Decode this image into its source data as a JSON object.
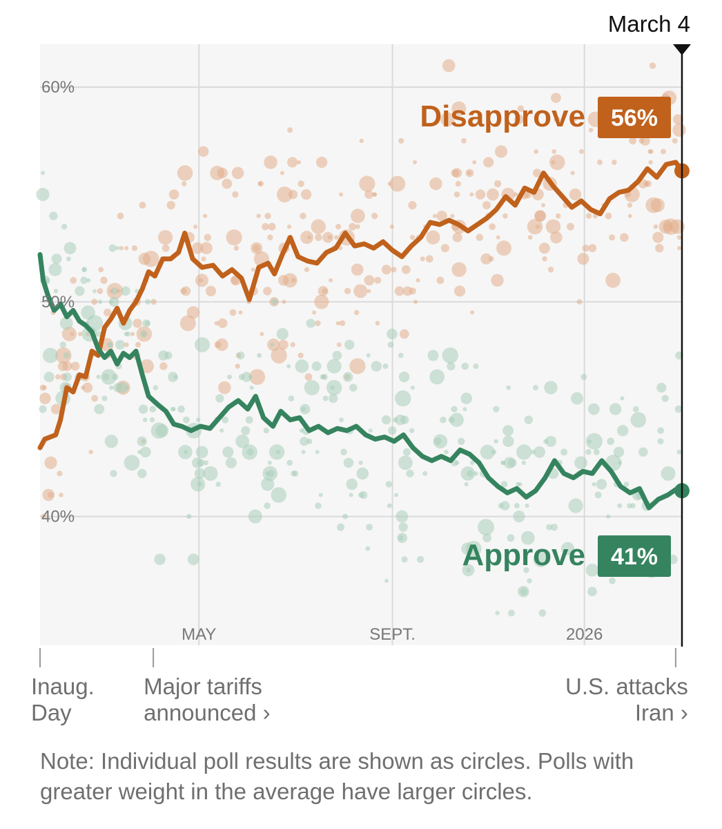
{
  "chart_data": {
    "type": "line",
    "date_marker": "March 4",
    "y_ticks": [
      {
        "value": 60,
        "label": "60%"
      },
      {
        "value": 50,
        "label": "50%"
      },
      {
        "value": 40,
        "label": "40%"
      }
    ],
    "ylim": [
      34,
      62
    ],
    "x_range": [
      "2025-01-20",
      "2026-03-04"
    ],
    "x_ticks": [
      {
        "date": "2025-05-01",
        "label": "MAY"
      },
      {
        "date": "2025-09-01",
        "label": "SEPT."
      },
      {
        "date": "2026-01-01",
        "label": "2026"
      }
    ],
    "events": [
      {
        "date": "2025-01-20",
        "line1": "Inaug.",
        "line2": "Day",
        "align": "start"
      },
      {
        "date": "2025-04-02",
        "line1": "Major tariffs",
        "line2": "announced ›",
        "align": "start"
      },
      {
        "date": "2026-02-28",
        "line1": "U.S. attacks",
        "line2": "Iran ›",
        "align": "end"
      }
    ],
    "series": [
      {
        "name": "Disapprove",
        "current_label": "56%",
        "color": "#c0611c",
        "dot_color": "#e2ae8d",
        "points": [
          [
            "2025-01-20",
            43.2
          ],
          [
            "2025-01-23",
            43.6
          ],
          [
            "2025-01-30",
            43.8
          ],
          [
            "2025-02-02",
            44.5
          ],
          [
            "2025-02-06",
            46.0
          ],
          [
            "2025-02-10",
            45.8
          ],
          [
            "2025-02-14",
            46.6
          ],
          [
            "2025-02-18",
            46.5
          ],
          [
            "2025-02-22",
            47.7
          ],
          [
            "2025-02-26",
            47.5
          ],
          [
            "2025-03-02",
            48.8
          ],
          [
            "2025-03-06",
            49.2
          ],
          [
            "2025-03-10",
            49.7
          ],
          [
            "2025-03-14",
            49.0
          ],
          [
            "2025-03-18",
            49.6
          ],
          [
            "2025-03-22",
            50.0
          ],
          [
            "2025-03-26",
            50.6
          ],
          [
            "2025-03-30",
            51.4
          ],
          [
            "2025-04-03",
            51.2
          ],
          [
            "2025-04-08",
            52.0
          ],
          [
            "2025-04-13",
            52.0
          ],
          [
            "2025-04-18",
            52.3
          ],
          [
            "2025-04-22",
            53.2
          ],
          [
            "2025-04-27",
            52.0
          ],
          [
            "2025-05-03",
            51.6
          ],
          [
            "2025-05-10",
            51.7
          ],
          [
            "2025-05-16",
            51.2
          ],
          [
            "2025-05-22",
            51.5
          ],
          [
            "2025-05-28",
            51.1
          ],
          [
            "2025-06-02",
            50.1
          ],
          [
            "2025-06-08",
            51.6
          ],
          [
            "2025-06-14",
            51.8
          ],
          [
            "2025-06-18",
            51.3
          ],
          [
            "2025-06-23",
            52.2
          ],
          [
            "2025-06-28",
            53.0
          ],
          [
            "2025-07-03",
            52.1
          ],
          [
            "2025-07-09",
            51.9
          ],
          [
            "2025-07-15",
            51.8
          ],
          [
            "2025-07-21",
            52.3
          ],
          [
            "2025-07-27",
            52.5
          ],
          [
            "2025-08-02",
            53.2
          ],
          [
            "2025-08-08",
            52.6
          ],
          [
            "2025-08-14",
            52.7
          ],
          [
            "2025-08-20",
            52.5
          ],
          [
            "2025-08-26",
            52.8
          ],
          [
            "2025-09-01",
            52.4
          ],
          [
            "2025-09-07",
            52.1
          ],
          [
            "2025-09-13",
            52.6
          ],
          [
            "2025-09-19",
            53.0
          ],
          [
            "2025-09-25",
            53.7
          ],
          [
            "2025-10-01",
            53.6
          ],
          [
            "2025-10-07",
            53.8
          ],
          [
            "2025-10-13",
            53.6
          ],
          [
            "2025-10-19",
            53.3
          ],
          [
            "2025-10-25",
            53.6
          ],
          [
            "2025-10-31",
            53.9
          ],
          [
            "2025-11-06",
            54.3
          ],
          [
            "2025-11-12",
            54.9
          ],
          [
            "2025-11-18",
            54.5
          ],
          [
            "2025-11-24",
            55.3
          ],
          [
            "2025-11-30",
            55.1
          ],
          [
            "2025-12-06",
            56.0
          ],
          [
            "2025-12-12",
            55.4
          ],
          [
            "2025-12-18",
            54.9
          ],
          [
            "2025-12-24",
            54.4
          ],
          [
            "2025-12-30",
            54.7
          ],
          [
            "2026-01-05",
            54.3
          ],
          [
            "2026-01-11",
            54.1
          ],
          [
            "2026-01-17",
            54.8
          ],
          [
            "2026-01-23",
            55.1
          ],
          [
            "2026-01-29",
            55.2
          ],
          [
            "2026-02-04",
            55.6
          ],
          [
            "2026-02-10",
            56.2
          ],
          [
            "2026-02-16",
            55.8
          ],
          [
            "2026-02-22",
            56.4
          ],
          [
            "2026-02-28",
            56.5
          ],
          [
            "2026-03-04",
            56.1
          ]
        ]
      },
      {
        "name": "Approve",
        "current_label": "41%",
        "color": "#35845f",
        "dot_color": "#a9cdb9",
        "points": [
          [
            "2025-01-20",
            52.2
          ],
          [
            "2025-01-22",
            51.0
          ],
          [
            "2025-01-25",
            50.3
          ],
          [
            "2025-01-29",
            49.6
          ],
          [
            "2025-02-02",
            49.9
          ],
          [
            "2025-02-06",
            49.3
          ],
          [
            "2025-02-10",
            49.6
          ],
          [
            "2025-02-14",
            49.1
          ],
          [
            "2025-02-18",
            48.9
          ],
          [
            "2025-02-22",
            48.6
          ],
          [
            "2025-02-26",
            47.8
          ],
          [
            "2025-03-02",
            47.4
          ],
          [
            "2025-03-06",
            47.7
          ],
          [
            "2025-03-10",
            47.1
          ],
          [
            "2025-03-14",
            47.6
          ],
          [
            "2025-03-18",
            47.4
          ],
          [
            "2025-03-22",
            47.7
          ],
          [
            "2025-03-26",
            46.6
          ],
          [
            "2025-03-30",
            45.6
          ],
          [
            "2025-04-05",
            45.2
          ],
          [
            "2025-04-10",
            44.9
          ],
          [
            "2025-04-15",
            44.3
          ],
          [
            "2025-04-20",
            44.2
          ],
          [
            "2025-04-26",
            44.0
          ],
          [
            "2025-05-02",
            44.2
          ],
          [
            "2025-05-08",
            44.1
          ],
          [
            "2025-05-14",
            44.6
          ],
          [
            "2025-05-20",
            45.1
          ],
          [
            "2025-05-26",
            45.4
          ],
          [
            "2025-06-01",
            45.0
          ],
          [
            "2025-06-06",
            45.6
          ],
          [
            "2025-06-11",
            44.6
          ],
          [
            "2025-06-17",
            44.2
          ],
          [
            "2025-06-22",
            44.9
          ],
          [
            "2025-06-28",
            44.5
          ],
          [
            "2025-07-04",
            44.6
          ],
          [
            "2025-07-10",
            44.0
          ],
          [
            "2025-07-16",
            44.2
          ],
          [
            "2025-07-22",
            43.9
          ],
          [
            "2025-07-28",
            44.1
          ],
          [
            "2025-08-03",
            44.0
          ],
          [
            "2025-08-09",
            44.2
          ],
          [
            "2025-08-15",
            43.8
          ],
          [
            "2025-08-21",
            43.6
          ],
          [
            "2025-08-27",
            43.7
          ],
          [
            "2025-09-02",
            43.5
          ],
          [
            "2025-09-08",
            43.8
          ],
          [
            "2025-09-14",
            43.2
          ],
          [
            "2025-09-20",
            42.8
          ],
          [
            "2025-09-26",
            42.6
          ],
          [
            "2025-10-02",
            42.8
          ],
          [
            "2025-10-08",
            42.6
          ],
          [
            "2025-10-14",
            43.1
          ],
          [
            "2025-10-20",
            42.9
          ],
          [
            "2025-10-26",
            42.5
          ],
          [
            "2025-11-01",
            41.8
          ],
          [
            "2025-11-07",
            41.4
          ],
          [
            "2025-11-13",
            41.1
          ],
          [
            "2025-11-19",
            41.3
          ],
          [
            "2025-11-25",
            40.9
          ],
          [
            "2025-12-01",
            41.2
          ],
          [
            "2025-12-07",
            41.8
          ],
          [
            "2025-12-13",
            42.6
          ],
          [
            "2025-12-19",
            42.0
          ],
          [
            "2025-12-25",
            41.8
          ],
          [
            "2025-12-31",
            42.1
          ],
          [
            "2026-01-06",
            42.0
          ],
          [
            "2026-01-12",
            42.6
          ],
          [
            "2026-01-18",
            42.1
          ],
          [
            "2026-01-24",
            41.4
          ],
          [
            "2026-01-30",
            41.1
          ],
          [
            "2026-02-05",
            41.3
          ],
          [
            "2026-02-11",
            40.4
          ],
          [
            "2026-02-17",
            40.8
          ],
          [
            "2026-02-23",
            41.0
          ],
          [
            "2026-03-01",
            41.3
          ],
          [
            "2026-03-04",
            41.2
          ]
        ]
      }
    ],
    "poll_dots": "individual polls scattered around each average"
  },
  "note": "Note: Individual poll results are shown as circles. Polls with greater weight in the average have larger circles."
}
